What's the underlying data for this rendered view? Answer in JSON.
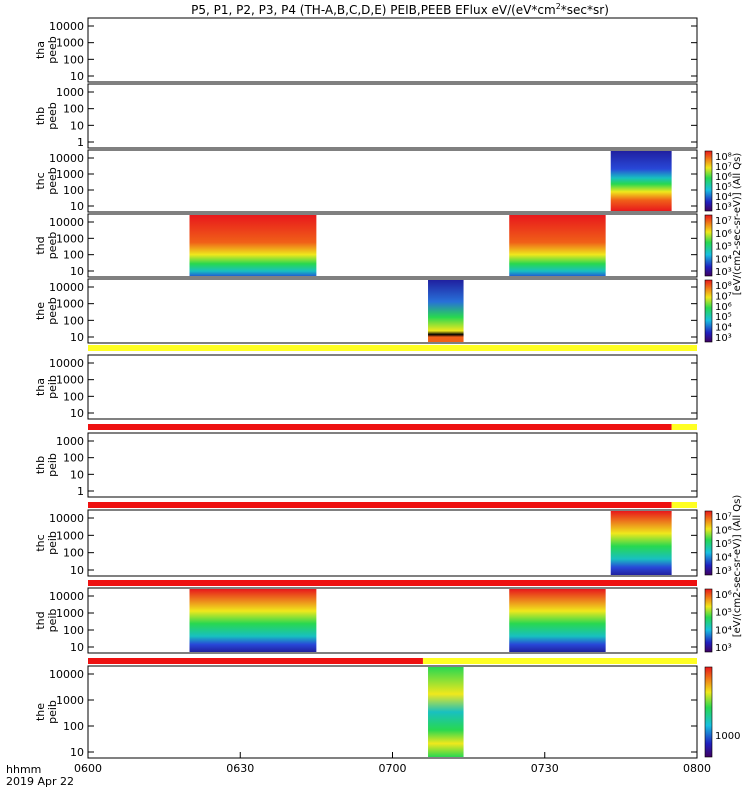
{
  "title": "P5, P1, P2, P3, P4 (TH-A,B,C,D,E) PEIB,PEEB EFlux eV/(eV*cm",
  "title_sup": "2",
  "title_tail": "*sec*sr)",
  "footer": {
    "label_hhmm": "hhmm",
    "label_date": "2019 Apr 22"
  },
  "chart_data": {
    "type": "heatmap",
    "x_ticks": [
      "0600",
      "0630",
      "0700",
      "0730",
      "0800"
    ],
    "x_range_minutes": [
      0,
      120
    ],
    "colorbar_units_top": "[eV/(cm2-sec-sr-eV)] (All Qs)",
    "colorbar_units_bottom": "[eV/(cm2-sec-sr-eV)] (All Qs)",
    "colors": {
      "high": "#e8181c",
      "mid": "#f0e81c",
      "low": "#2020a0",
      "bar_red": "#ee1111",
      "bar_yellow": "#ffff22"
    },
    "panels": [
      {
        "id": "tha-peeb",
        "label1": "tha",
        "label2": "peeb",
        "y_ticks": [
          "10000",
          "1000",
          "100",
          "10"
        ],
        "y_log": true,
        "intervals": []
      },
      {
        "id": "thb-peeb",
        "label1": "thb",
        "label2": "peeb",
        "y_ticks": [
          "1000",
          "100",
          "10",
          "1"
        ],
        "y_log": true,
        "intervals": []
      },
      {
        "id": "thc-peeb",
        "label1": "thc",
        "label2": "peeb",
        "y_ticks": [
          "10000",
          "1000",
          "100",
          "10"
        ],
        "y_log": true,
        "intervals": [
          {
            "start_min": 103,
            "end_min": 115
          }
        ],
        "colorbar_ticks": [
          "10⁸",
          "10⁷",
          "10⁶",
          "10⁵",
          "10⁴",
          "10³"
        ]
      },
      {
        "id": "thd-peeb",
        "label1": "thd",
        "label2": "peeb",
        "y_ticks": [
          "10000",
          "1000",
          "100",
          "10"
        ],
        "y_log": true,
        "intervals": [
          {
            "start_min": 20,
            "end_min": 45
          },
          {
            "start_min": 83,
            "end_min": 102
          }
        ],
        "colorbar_ticks": [
          "10⁷",
          "10⁶",
          "10⁵",
          "10⁴",
          "10³"
        ]
      },
      {
        "id": "the-peeb",
        "label1": "the",
        "label2": "peeb",
        "y_ticks": [
          "10000",
          "1000",
          "100",
          "10"
        ],
        "y_log": true,
        "intervals": [
          {
            "start_min": 67,
            "end_min": 74
          }
        ],
        "colorbar_ticks": [
          "10⁸",
          "10⁷",
          "10⁶",
          "10⁵",
          "10⁴",
          "10³"
        ]
      },
      {
        "id": "tha-peib",
        "label1": "tha",
        "label2": "peib",
        "y_ticks": [
          "10000",
          "1000",
          "100",
          "10"
        ],
        "y_log": true,
        "intervals": []
      },
      {
        "id": "thb-peib",
        "label1": "thb",
        "label2": "peib",
        "y_ticks": [
          "1000",
          "100",
          "10",
          "1"
        ],
        "y_log": true,
        "intervals": []
      },
      {
        "id": "thc-peib",
        "label1": "thc",
        "label2": "peib",
        "y_ticks": [
          "10000",
          "1000",
          "100",
          "10"
        ],
        "y_log": true,
        "intervals": [
          {
            "start_min": 103,
            "end_min": 115
          }
        ],
        "colorbar_ticks": [
          "10⁷",
          "10⁶",
          "10⁵",
          "10⁴",
          "10³"
        ]
      },
      {
        "id": "thd-peib",
        "label1": "thd",
        "label2": "peib",
        "y_ticks": [
          "10000",
          "1000",
          "100",
          "10"
        ],
        "y_log": true,
        "intervals": [
          {
            "start_min": 20,
            "end_min": 45
          },
          {
            "start_min": 83,
            "end_min": 102
          }
        ],
        "colorbar_ticks": [
          "10⁶",
          "10⁵",
          "10⁴",
          "10³"
        ]
      },
      {
        "id": "the-peib",
        "label1": "the",
        "label2": "peib",
        "y_ticks": [
          "10000",
          "1000",
          "100",
          "10"
        ],
        "y_log": true,
        "intervals": [
          {
            "start_min": 67,
            "end_min": 74
          }
        ],
        "colorbar_ticks": [
          "1000"
        ]
      }
    ],
    "status_bars": [
      {
        "after_panel": "the-peeb",
        "segments": [
          {
            "start_min": 0,
            "end_min": 120,
            "color": "yellow"
          }
        ]
      },
      {
        "after_panel": "tha-peib",
        "segments": [
          {
            "start_min": 0,
            "end_min": 115,
            "color": "red"
          },
          {
            "start_min": 115,
            "end_min": 120,
            "color": "yellow"
          }
        ]
      },
      {
        "after_panel": "thb-peib",
        "segments": [
          {
            "start_min": 0,
            "end_min": 115,
            "color": "red"
          },
          {
            "start_min": 115,
            "end_min": 120,
            "color": "yellow"
          }
        ]
      },
      {
        "after_panel": "thc-peib",
        "segments": [
          {
            "start_min": 0,
            "end_min": 120,
            "color": "red"
          }
        ]
      },
      {
        "after_panel": "thd-peib",
        "segments": [
          {
            "start_min": 0,
            "end_min": 66,
            "color": "red"
          },
          {
            "start_min": 66,
            "end_min": 120,
            "color": "yellow"
          }
        ]
      }
    ]
  }
}
